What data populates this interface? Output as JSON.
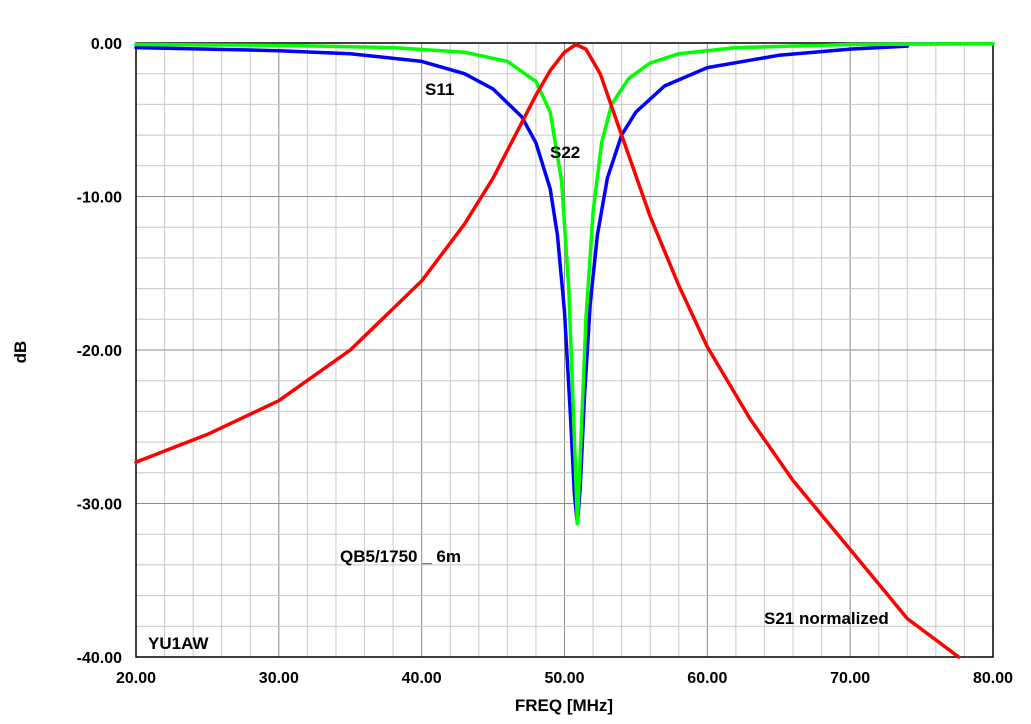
{
  "chart_data": {
    "type": "line",
    "xlabel": "FREQ [MHz]",
    "ylabel": "dB",
    "xlim": [
      20,
      80
    ],
    "ylim": [
      -40,
      0
    ],
    "x_ticks": [
      "20.00",
      "30.00",
      "40.00",
      "50.00",
      "60.00",
      "70.00",
      "80.00"
    ],
    "y_ticks": [
      "0.00",
      "-10.00",
      "-20.00",
      "-30.00",
      "-40.00"
    ],
    "grid": true,
    "series": [
      {
        "name": "S11",
        "color": "#0000ff",
        "x": [
          20,
          25,
          30,
          35,
          40,
          43,
          45,
          47,
          48,
          49,
          49.5,
          50,
          50.4,
          50.7,
          50.9,
          51.1,
          51.4,
          51.8,
          52.3,
          53,
          54,
          55,
          57,
          60,
          65,
          70,
          74
        ],
        "y": [
          -0.3,
          -0.4,
          -0.5,
          -0.7,
          -1.2,
          -2.0,
          -3.0,
          -4.8,
          -6.5,
          -9.5,
          -12.5,
          -17.5,
          -24,
          -29.5,
          -31.3,
          -29,
          -23,
          -17,
          -12.5,
          -8.8,
          -6.0,
          -4.5,
          -2.8,
          -1.6,
          -0.8,
          -0.4,
          -0.2
        ]
      },
      {
        "name": "S22",
        "color": "#00ff00",
        "x": [
          20,
          30,
          38,
          43,
          46,
          48,
          49,
          49.8,
          50.3,
          50.7,
          50.9,
          51.1,
          51.5,
          52,
          52.6,
          53.3,
          54.5,
          56,
          58,
          62,
          70,
          80
        ],
        "y": [
          -0.1,
          -0.15,
          -0.3,
          -0.6,
          -1.2,
          -2.5,
          -4.5,
          -9,
          -16,
          -26,
          -31.3,
          -27,
          -18,
          -11,
          -6.5,
          -4.0,
          -2.3,
          -1.3,
          -0.7,
          -0.3,
          -0.1,
          -0.05
        ]
      },
      {
        "name": "S21 normalized",
        "color": "#ff0000",
        "x": [
          20,
          25,
          30,
          35,
          40,
          43,
          45,
          47,
          48,
          49,
          50,
          50.8,
          51.5,
          52.5,
          54,
          56,
          58,
          60,
          63,
          66,
          70,
          74,
          77.6
        ],
        "y": [
          -27.3,
          -25.5,
          -23.3,
          -20.0,
          -15.5,
          -11.8,
          -8.8,
          -5.2,
          -3.4,
          -1.8,
          -0.6,
          -0.1,
          -0.4,
          -2.0,
          -6.0,
          -11.3,
          -15.8,
          -19.8,
          -24.5,
          -28.5,
          -33.0,
          -37.5,
          -40.0
        ]
      }
    ],
    "annotations": [
      "S11",
      "S22",
      "S21 normalized",
      "QB5/1750 _ 6m",
      "YU1AW"
    ]
  }
}
